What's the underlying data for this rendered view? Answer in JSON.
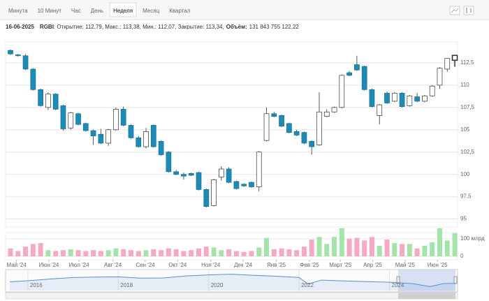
{
  "toolbar": {
    "tabs": [
      "Минута",
      "10 Минут",
      "Час",
      "День",
      "Неделя",
      "Месяц",
      "Квартал"
    ],
    "active": 4
  },
  "info": {
    "date": "16-06-2025",
    "ticker": "RGBI",
    "text": ": Открытие: 112,79, Макс.: 113,38, Мин.: 112,07, Закрытие: 113,34,",
    "volume_label": "Объём:",
    "volume": "131 843 755 122,22"
  },
  "chart_data": {
    "type": "candlestick",
    "open": [
      113.9,
      113.4,
      113.3,
      111.8,
      109.5,
      107.5,
      109.0,
      107.7,
      105.2,
      106.8,
      105.7,
      104.9,
      104.5,
      103.5,
      105.0,
      107.3,
      105.5,
      104.1,
      103.1,
      105.5,
      103.7,
      102.5,
      100.3,
      100.0,
      100.1,
      100.2,
      98.3,
      96.5,
      99.7,
      100.6,
      99.2,
      98.9,
      99.1,
      98.6,
      103.8,
      106.8,
      106.6,
      105.7,
      104.8,
      104.7,
      103.7,
      103.3,
      106.5,
      107.0,
      107.5,
      111.4,
      112.3,
      112.1,
      109.5,
      106.6,
      109.1,
      108.2,
      109.1,
      107.7,
      108.7,
      108.2,
      108.8,
      110.0,
      111.8,
      112.79
    ],
    "high": [
      114.0,
      113.5,
      113.5,
      111.9,
      109.6,
      109.2,
      109.1,
      107.8,
      107.0,
      106.9,
      105.8,
      105.0,
      105.1,
      105.1,
      107.5,
      107.6,
      105.6,
      104.3,
      105.2,
      105.6,
      103.8,
      102.6,
      100.5,
      100.2,
      100.2,
      100.3,
      98.4,
      99.5,
      100.9,
      100.8,
      99.3,
      99.0,
      99.2,
      102.6,
      107.5,
      107.0,
      106.7,
      105.8,
      105.0,
      104.8,
      103.8,
      109.2,
      107.3,
      107.6,
      111.2,
      111.6,
      113.3,
      112.2,
      109.6,
      107.9,
      109.3,
      109.2,
      109.2,
      108.9,
      109.1,
      108.9,
      110.0,
      112.0,
      113.0,
      113.38
    ],
    "low": [
      113.4,
      113.2,
      111.7,
      109.4,
      107.6,
      107.2,
      107.2,
      104.9,
      105.0,
      105.5,
      104.8,
      103.3,
      103.4,
      103.2,
      104.9,
      105.4,
      104.0,
      103.0,
      102.9,
      103.0,
      102.1,
      100.2,
      99.9,
      99.4,
      99.8,
      98.2,
      96.3,
      96.4,
      99.3,
      99.0,
      98.3,
      98.6,
      98.5,
      98.1,
      103.7,
      106.4,
      105.3,
      104.6,
      104.3,
      103.4,
      102.2,
      103.2,
      106.4,
      106.9,
      107.4,
      111.0,
      111.6,
      109.4,
      107.5,
      105.6,
      107.9,
      108.1,
      107.5,
      107.6,
      108.1,
      108.1,
      108.7,
      109.6,
      111.5,
      112.07
    ],
    "close": [
      113.5,
      113.3,
      111.8,
      109.5,
      107.7,
      109.0,
      107.3,
      105.1,
      106.9,
      105.6,
      104.9,
      104.3,
      103.5,
      105.0,
      107.3,
      105.5,
      104.1,
      103.1,
      104.8,
      103.1,
      102.2,
      100.3,
      100.0,
      99.8,
      99.9,
      98.3,
      96.4,
      99.4,
      100.6,
      99.1,
      98.4,
      98.7,
      98.6,
      102.5,
      106.8,
      106.5,
      105.4,
      104.7,
      104.4,
      103.5,
      103.1,
      107.0,
      107.0,
      107.5,
      111.1,
      111.1,
      111.7,
      109.5,
      107.6,
      107.8,
      108.0,
      109.1,
      107.6,
      108.8,
      108.2,
      108.8,
      109.9,
      111.9,
      113.0,
      113.34
    ],
    "volume": [
      45,
      30,
      55,
      70,
      75,
      35,
      30,
      35,
      40,
      35,
      30,
      35,
      30,
      35,
      45,
      40,
      35,
      30,
      35,
      40,
      35,
      45,
      40,
      30,
      35,
      45,
      55,
      50,
      35,
      40,
      30,
      25,
      30,
      50,
      105,
      40,
      45,
      40,
      35,
      55,
      95,
      110,
      70,
      110,
      160,
      100,
      105,
      90,
      110,
      60,
      95,
      75,
      70,
      70,
      45,
      60,
      80,
      160,
      90,
      131.84
    ],
    "up_color": "#ffffff",
    "down_color": "#1a8cba",
    "volume_up_color": "#a3e4a8",
    "volume_down_color": "#f7a9c2",
    "ylim": [
      94.1,
      114.85
    ],
    "yticks": [
      95,
      {
        "value": 97.5,
        "label": "97,5"
      },
      100,
      {
        "value": 102.5,
        "label": "102,5"
      },
      105,
      {
        "value": 107.5,
        "label": "107,5"
      },
      110,
      {
        "value": 112.5,
        "label": "112,5"
      }
    ],
    "volume_ylim": [
      0,
      135
    ],
    "volume_ticks": [
      0,
      {
        "value": 100,
        "label": "100 млрд"
      }
    ],
    "xticks": [
      {
        "value": 0.8,
        "label": "Май '24"
      },
      {
        "value": 5.1,
        "label": "Июн '24"
      },
      {
        "value": 9.1,
        "label": "Июл '24"
      },
      {
        "value": 13.6,
        "label": "Авг '24"
      },
      {
        "value": 17.9,
        "label": "Сен '24"
      },
      {
        "value": 22.2,
        "label": "Окт '24"
      },
      {
        "value": 26.6,
        "label": "Ноя '24"
      },
      {
        "value": 30.9,
        "label": "Дек '24"
      },
      {
        "value": 35.3,
        "label": "Янв '25"
      },
      {
        "value": 39.7,
        "label": "Фев '25"
      },
      {
        "value": 43.8,
        "label": "Март '25"
      },
      {
        "value": 48.1,
        "label": "Апр '25"
      },
      {
        "value": 52.4,
        "label": "Май '25"
      },
      {
        "value": 56.7,
        "label": "Июн '25"
      }
    ],
    "grid": true,
    "navigator": {
      "x": [
        2015.6,
        2016,
        2016.5,
        2017,
        2017.5,
        2018,
        2018.5,
        2019,
        2019.5,
        2020,
        2020.5,
        2021,
        2021.5,
        2022,
        2022.2,
        2022.5,
        2023,
        2023.5,
        2024,
        2024.5,
        2024.9,
        2025.2,
        2025.46
      ],
      "values": [
        120,
        125,
        133,
        140,
        142,
        143,
        137,
        138,
        147,
        152,
        155,
        150,
        146,
        140,
        110,
        128,
        124,
        121,
        118,
        112,
        98,
        112,
        113
      ],
      "xlim": [
        2015.6,
        2025.46
      ],
      "ylim": [
        80,
        170
      ],
      "xticks": [
        2016,
        2018,
        2020,
        2022,
        2024
      ],
      "color": "#5b8fc7"
    }
  }
}
